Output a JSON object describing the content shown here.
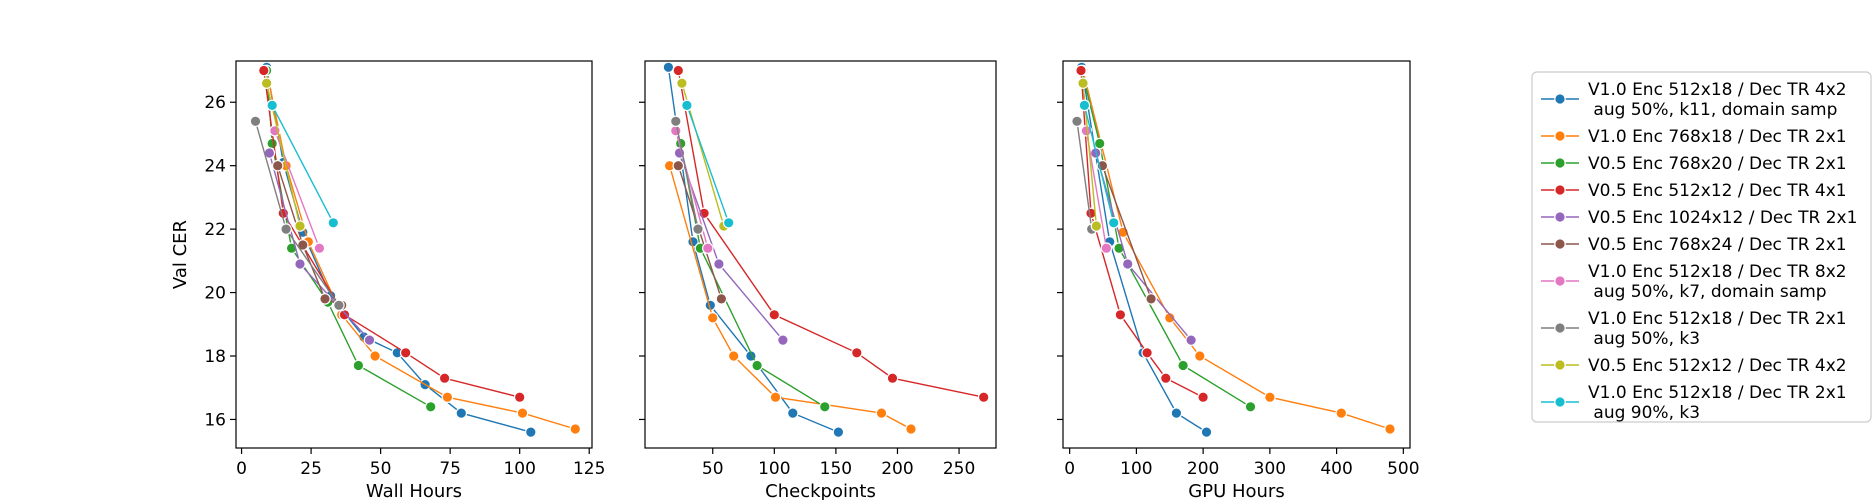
{
  "chart_data": {
    "type": "line",
    "ylabel": "Val CER",
    "ylim": [
      15.1,
      27.3
    ],
    "yticks": [
      16,
      18,
      20,
      22,
      24,
      26
    ],
    "marker": "circle",
    "legend_position": "right",
    "series": [
      {
        "name": "V1.0 Enc 512x18 / Dec TR 4x2\n aug 50%, k11, domain samp",
        "color": "#1f77b4"
      },
      {
        "name": "V1.0 Enc 768x18 / Dec TR 2x1",
        "color": "#ff7f0e"
      },
      {
        "name": "V0.5 Enc 768x20 / Dec TR 2x1",
        "color": "#2ca02c"
      },
      {
        "name": "V0.5 Enc 512x12 / Dec TR 4x1",
        "color": "#d62728"
      },
      {
        "name": "V0.5 Enc 1024x12 / Dec TR 2x1",
        "color": "#9467bd"
      },
      {
        "name": "V0.5 Enc 768x24 / Dec TR 2x1",
        "color": "#8c564b"
      },
      {
        "name": "V1.0 Enc 512x18 / Dec TR 8x2\n aug 50%, k7, domain samp",
        "color": "#e377c2"
      },
      {
        "name": "V1.0 Enc 512x18 / Dec TR 2x1\n aug 50%, k3",
        "color": "#7f7f7f"
      },
      {
        "name": "V0.5 Enc 512x12 / Dec TR 4x2",
        "color": "#bcbd22"
      },
      {
        "name": "V1.0 Enc 512x18 / Dec TR 2x1\n aug 90%, k3",
        "color": "#17becf"
      }
    ],
    "panels": [
      {
        "xlabel": "Wall Hours",
        "xlim": [
          -2,
          126
        ],
        "xticks": [
          0,
          25,
          50,
          75,
          100,
          125
        ],
        "series": [
          {
            "x": [
              9,
              15,
              22,
              32,
              44,
              56,
              66,
              79,
              104
            ],
            "y": [
              27.1,
              24.1,
              21.9,
              19.9,
              18.6,
              18.1,
              17.1,
              16.2,
              15.6
            ]
          },
          {
            "x": [
              9,
              16,
              24,
              36,
              48,
              74,
              101,
              120
            ],
            "y": [
              27.0,
              24.0,
              21.6,
              19.3,
              18.0,
              16.7,
              16.2,
              15.7
            ]
          },
          {
            "x": [
              9,
              11,
              18,
              31,
              42,
              68
            ],
            "y": [
              27.0,
              24.7,
              21.4,
              19.7,
              17.7,
              16.4
            ]
          },
          {
            "x": [
              8,
              15,
              37,
              59,
              73,
              100
            ],
            "y": [
              27.0,
              22.5,
              19.3,
              18.1,
              17.3,
              16.7
            ]
          },
          {
            "x": [
              10,
              21,
              46
            ],
            "y": [
              24.4,
              20.9,
              18.5
            ]
          },
          {
            "x": [
              13,
              22,
              30,
              36
            ],
            "y": [
              24.0,
              21.5,
              19.8,
              19.6
            ]
          },
          {
            "x": [
              12,
              28
            ],
            "y": [
              25.1,
              21.4
            ]
          },
          {
            "x": [
              5,
              16,
              35
            ],
            "y": [
              25.4,
              22.0,
              19.6
            ]
          },
          {
            "x": [
              9,
              21
            ],
            "y": [
              26.6,
              22.1
            ]
          },
          {
            "x": [
              11,
              33
            ],
            "y": [
              25.9,
              22.2
            ]
          }
        ]
      },
      {
        "xlabel": "Checkpoints",
        "xlim": [
          -5,
          280
        ],
        "xticks": [
          50,
          100,
          150,
          200,
          250
        ],
        "series": [
          {
            "x": [
              14,
              34,
              48,
              81,
              115,
              152
            ],
            "y": [
              27.1,
              21.6,
              19.6,
              18.0,
              16.2,
              15.6
            ]
          },
          {
            "x": [
              15,
              50,
              67,
              101,
              187,
              211
            ],
            "y": [
              24.0,
              19.2,
              18.0,
              16.7,
              16.2,
              15.7
            ]
          },
          {
            "x": [
              24,
              40,
              86,
              141
            ],
            "y": [
              24.7,
              21.4,
              17.7,
              16.4
            ]
          },
          {
            "x": [
              22,
              43,
              100,
              167,
              196,
              270
            ],
            "y": [
              27.0,
              22.5,
              19.3,
              18.1,
              17.3,
              16.7
            ]
          },
          {
            "x": [
              23,
              55,
              107
            ],
            "y": [
              24.4,
              20.9,
              18.5
            ]
          },
          {
            "x": [
              22,
              57
            ],
            "y": [
              24.0,
              19.8
            ]
          },
          {
            "x": [
              20,
              46
            ],
            "y": [
              25.1,
              21.4
            ]
          },
          {
            "x": [
              20,
              38
            ],
            "y": [
              25.4,
              22.0
            ]
          },
          {
            "x": [
              25,
              59
            ],
            "y": [
              26.6,
              22.1
            ]
          },
          {
            "x": [
              29,
              63
            ],
            "y": [
              25.9,
              22.2
            ]
          }
        ]
      },
      {
        "xlabel": "GPU Hours",
        "xlim": [
          -10,
          510
        ],
        "xticks": [
          0,
          100,
          200,
          300,
          400,
          500
        ],
        "series": [
          {
            "x": [
              18,
              60,
              110,
              160,
              205
            ],
            "y": [
              27.1,
              21.6,
              18.1,
              16.2,
              15.6
            ]
          },
          {
            "x": [
              20,
              80,
              150,
              195,
              300,
              407,
              480
            ],
            "y": [
              27.0,
              21.9,
              19.2,
              18.0,
              16.7,
              16.2,
              15.7
            ]
          },
          {
            "x": [
              18,
              45,
              74,
              170,
              271
            ],
            "y": [
              27.0,
              24.7,
              21.4,
              17.7,
              16.4
            ]
          },
          {
            "x": [
              17,
              32,
              76,
              116,
              144,
              200
            ],
            "y": [
              27.0,
              22.5,
              19.3,
              18.1,
              17.3,
              16.7
            ]
          },
          {
            "x": [
              39,
              87,
              182
            ],
            "y": [
              24.4,
              20.9,
              18.5
            ]
          },
          {
            "x": [
              49,
              122
            ],
            "y": [
              24.0,
              19.8
            ]
          },
          {
            "x": [
              25,
              55
            ],
            "y": [
              25.1,
              21.4
            ]
          },
          {
            "x": [
              11,
              33
            ],
            "y": [
              25.4,
              22.0
            ]
          },
          {
            "x": [
              20,
              40
            ],
            "y": [
              26.6,
              22.1
            ]
          },
          {
            "x": [
              22,
              66
            ],
            "y": [
              25.9,
              22.2
            ]
          }
        ]
      }
    ]
  }
}
